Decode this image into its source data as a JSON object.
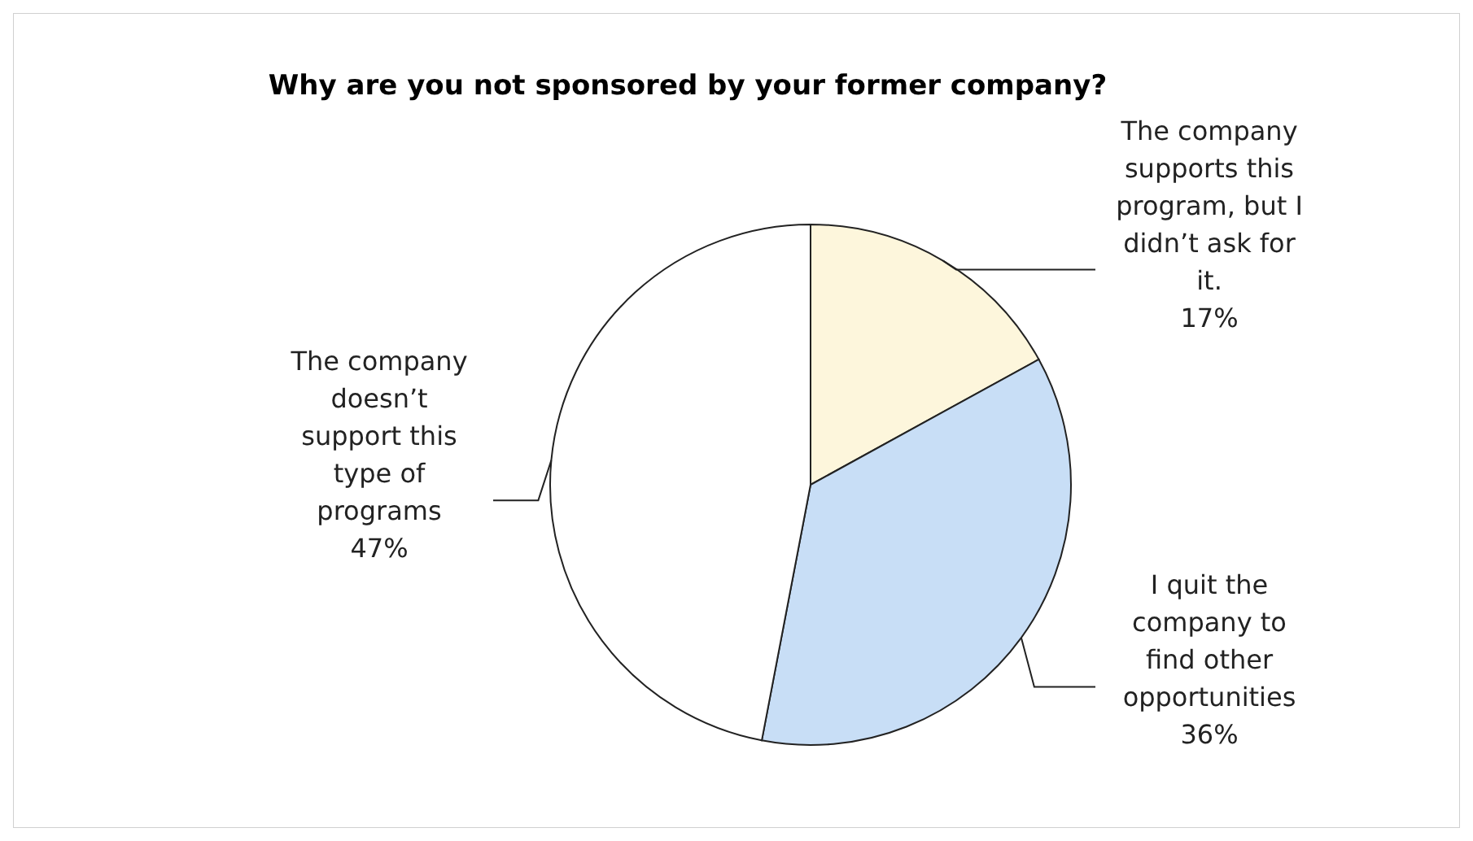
{
  "chart_data": {
    "type": "pie",
    "title": "Why are you not sponsored by your former company?",
    "categories": [
      "The company supports this program, but I didn’t ask for it.",
      "I quit the company to find other opportunities",
      "The company doesn’t support this type of programs"
    ],
    "values": [
      17,
      36,
      47
    ],
    "colors": [
      "#fdf6dc",
      "#c8def6",
      "#ffffff"
    ],
    "value_labels": [
      "17%",
      "36%",
      "47%"
    ],
    "data_labels": true
  }
}
